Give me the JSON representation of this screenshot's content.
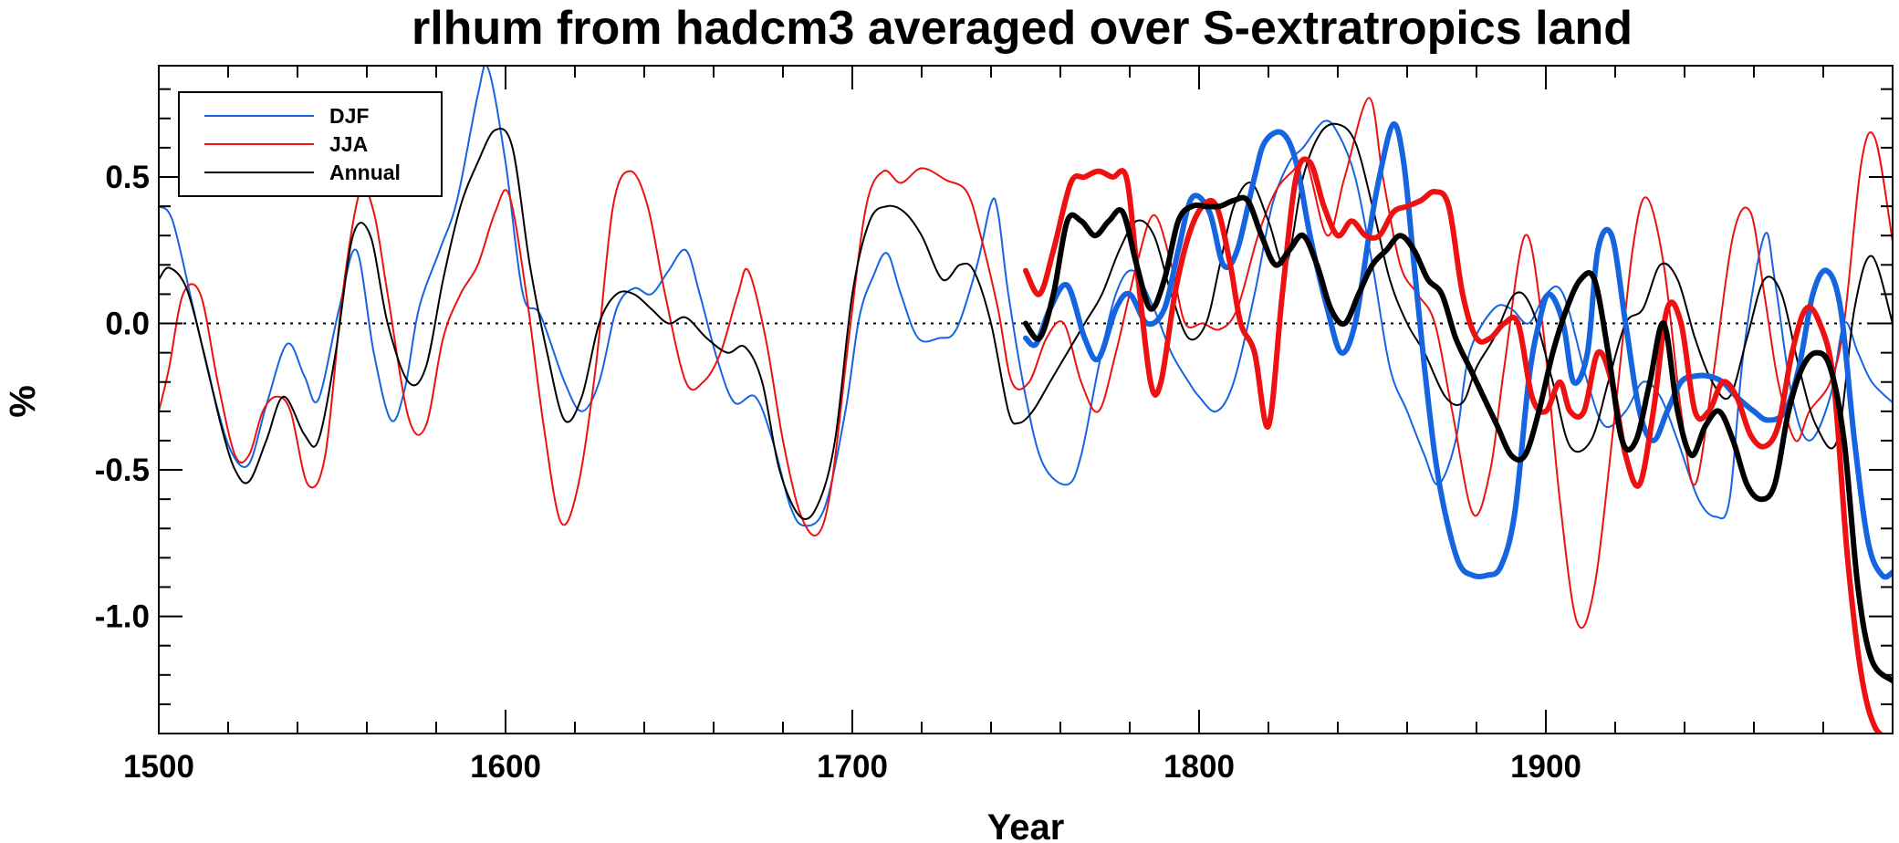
{
  "chart_data": {
    "type": "line",
    "title": "rlhum from hadcm3 averaged over S-extratropics land",
    "xlabel": "Year",
    "ylabel": "%",
    "xlim": [
      1500,
      2000
    ],
    "ylim": [
      -1.4,
      0.88
    ],
    "x_ticks": [
      1500,
      1600,
      1700,
      1800,
      1900
    ],
    "x_tick_labels": [
      "1500",
      "1600",
      "1700",
      "1800",
      "1900"
    ],
    "y_ticks": [
      -1.0,
      -0.5,
      0.0,
      0.5
    ],
    "y_tick_labels": [
      "-1.0",
      "-0.5",
      "0.0",
      "0.5"
    ],
    "x_minor_step": 20,
    "y_minor_step": 0.1,
    "zero_line": true,
    "legend_position": "top-left",
    "legend": [
      {
        "label": "DJF",
        "color": "#1565e0"
      },
      {
        "label": "JJA",
        "color": "#ee1111"
      },
      {
        "label": "Annual",
        "color": "#000000"
      }
    ],
    "series": [
      {
        "name": "DJF",
        "color": "#1565e0",
        "style": "thin",
        "role": "simulation",
        "x": [
          1500,
          1504,
          1510,
          1516,
          1521,
          1526,
          1531,
          1537,
          1542,
          1546,
          1552,
          1557,
          1562,
          1567,
          1571,
          1575,
          1581,
          1586,
          1592,
          1595,
          1600,
          1605,
          1610,
          1617,
          1622,
          1627,
          1632,
          1637,
          1642,
          1647,
          1652,
          1656,
          1661,
          1666,
          1672,
          1677,
          1682,
          1686,
          1692,
          1698,
          1702,
          1706,
          1710,
          1714,
          1719,
          1725,
          1730,
          1736,
          1740,
          1742,
          1745,
          1750,
          1755,
          1762,
          1766,
          1771,
          1776,
          1781,
          1787,
          1792,
          1797,
          1800,
          1805,
          1810,
          1816,
          1821,
          1826,
          1830,
          1836,
          1840,
          1845,
          1850,
          1855,
          1860,
          1865,
          1869,
          1874,
          1878,
          1885,
          1890,
          1895,
          1900,
          1905,
          1912,
          1917,
          1923,
          1928,
          1933,
          1938,
          1944,
          1949,
          1953,
          1957,
          1963,
          1966,
          1971,
          1976,
          1982,
          1986,
          1990,
          1994,
          2000
        ],
        "y": [
          0.4,
          0.35,
          0.05,
          -0.25,
          -0.44,
          -0.48,
          -0.28,
          -0.07,
          -0.18,
          -0.26,
          0.05,
          0.25,
          -0.1,
          -0.33,
          -0.22,
          0.05,
          0.25,
          0.42,
          0.78,
          0.87,
          0.55,
          0.1,
          0.03,
          -0.2,
          -0.3,
          -0.2,
          0.05,
          0.12,
          0.1,
          0.18,
          0.25,
          0.1,
          -0.12,
          -0.27,
          -0.25,
          -0.4,
          -0.62,
          -0.69,
          -0.63,
          -0.3,
          0.02,
          0.16,
          0.24,
          0.1,
          -0.05,
          -0.05,
          -0.02,
          0.2,
          0.41,
          0.38,
          0.1,
          -0.25,
          -0.48,
          -0.55,
          -0.45,
          -0.15,
          0.1,
          0.18,
          0.05,
          -0.1,
          -0.2,
          -0.25,
          -0.3,
          -0.2,
          0.1,
          0.4,
          0.55,
          0.6,
          0.69,
          0.65,
          0.5,
          0.2,
          -0.15,
          -0.3,
          -0.45,
          -0.55,
          -0.4,
          -0.1,
          0.05,
          0.05,
          0.0,
          0.1,
          0.1,
          -0.2,
          -0.35,
          -0.3,
          -0.2,
          -0.25,
          -0.4,
          -0.6,
          -0.66,
          -0.6,
          -0.1,
          0.3,
          0.15,
          -0.25,
          -0.4,
          -0.25,
          0.0,
          -0.1,
          -0.2,
          -0.27
        ]
      },
      {
        "name": "JJA",
        "color": "#ee1111",
        "style": "thin",
        "role": "simulation",
        "x": [
          1500,
          1503,
          1507,
          1512,
          1517,
          1522,
          1526,
          1530,
          1534,
          1538,
          1543,
          1548,
          1553,
          1558,
          1562,
          1566,
          1572,
          1577,
          1582,
          1587,
          1592,
          1597,
          1601,
          1606,
          1611,
          1616,
          1621,
          1626,
          1631,
          1636,
          1641,
          1646,
          1652,
          1657,
          1662,
          1667,
          1670,
          1675,
          1680,
          1685,
          1690,
          1694,
          1699,
          1704,
          1709,
          1714,
          1720,
          1727,
          1733,
          1737,
          1742,
          1746,
          1751,
          1756,
          1761,
          1766,
          1771,
          1776,
          1782,
          1787,
          1792,
          1796,
          1801,
          1806,
          1811,
          1817,
          1822,
          1827,
          1831,
          1837,
          1842,
          1849,
          1853,
          1858,
          1863,
          1868,
          1873,
          1879,
          1884,
          1888,
          1894,
          1899,
          1904,
          1909,
          1914,
          1920,
          1925,
          1929,
          1934,
          1939,
          1943,
          1948,
          1954,
          1959,
          1963,
          1967,
          1972,
          1976,
          1982,
          1986,
          1991,
          1995,
          2000
        ],
        "y": [
          -0.3,
          -0.15,
          0.1,
          0.1,
          -0.2,
          -0.45,
          -0.45,
          -0.3,
          -0.25,
          -0.3,
          -0.55,
          -0.45,
          0.1,
          0.45,
          0.38,
          0.1,
          -0.32,
          -0.35,
          -0.05,
          0.1,
          0.2,
          0.38,
          0.44,
          0.1,
          -0.35,
          -0.68,
          -0.55,
          -0.15,
          0.4,
          0.52,
          0.4,
          0.1,
          -0.2,
          -0.2,
          -0.1,
          0.1,
          0.18,
          -0.05,
          -0.4,
          -0.65,
          -0.72,
          -0.55,
          -0.05,
          0.4,
          0.52,
          0.48,
          0.53,
          0.49,
          0.45,
          0.3,
          0.05,
          -0.2,
          -0.2,
          -0.05,
          0.0,
          -0.2,
          -0.3,
          -0.1,
          0.2,
          0.37,
          0.2,
          0.0,
          0.0,
          -0.02,
          0.05,
          0.3,
          0.45,
          0.52,
          0.55,
          0.3,
          0.5,
          0.77,
          0.5,
          0.2,
          0.1,
          0.0,
          -0.3,
          -0.65,
          -0.5,
          -0.15,
          0.3,
          0.0,
          -0.6,
          -1.02,
          -0.9,
          -0.3,
          0.25,
          0.43,
          0.2,
          -0.3,
          -0.55,
          -0.2,
          0.3,
          0.38,
          0.1,
          -0.2,
          -0.4,
          -0.3,
          -0.2,
          0.0,
          0.55,
          0.63,
          0.28
        ]
      },
      {
        "name": "Annual",
        "color": "#000000",
        "style": "thin",
        "role": "simulation",
        "x": [
          1500,
          1503,
          1508,
          1513,
          1518,
          1522,
          1526,
          1531,
          1536,
          1542,
          1546,
          1551,
          1556,
          1561,
          1566,
          1572,
          1577,
          1582,
          1587,
          1592,
          1597,
          1602,
          1607,
          1612,
          1617,
          1622,
          1627,
          1632,
          1637,
          1642,
          1647,
          1652,
          1658,
          1664,
          1669,
          1674,
          1679,
          1685,
          1690,
          1695,
          1700,
          1705,
          1710,
          1715,
          1720,
          1726,
          1731,
          1735,
          1740,
          1745,
          1748,
          1752,
          1757,
          1762,
          1767,
          1772,
          1777,
          1782,
          1787,
          1792,
          1797,
          1802,
          1806,
          1810,
          1815,
          1820,
          1825,
          1830,
          1835,
          1840,
          1845,
          1850,
          1855,
          1860,
          1865,
          1871,
          1876,
          1880,
          1885,
          1891,
          1896,
          1902,
          1907,
          1913,
          1918,
          1923,
          1928,
          1933,
          1938,
          1943,
          1948,
          1953,
          1958,
          1963,
          1968,
          1973,
          1978,
          1984,
          1989,
          1994,
          2000
        ],
        "y": [
          0.15,
          0.19,
          0.12,
          -0.1,
          -0.35,
          -0.5,
          -0.54,
          -0.4,
          -0.25,
          -0.38,
          -0.4,
          -0.1,
          0.3,
          0.3,
          0.0,
          -0.2,
          -0.15,
          0.15,
          0.4,
          0.55,
          0.66,
          0.6,
          0.2,
          -0.1,
          -0.33,
          -0.25,
          0.0,
          0.1,
          0.1,
          0.05,
          0.0,
          0.02,
          -0.05,
          -0.1,
          -0.08,
          -0.2,
          -0.5,
          -0.66,
          -0.62,
          -0.4,
          0.1,
          0.35,
          0.4,
          0.38,
          0.3,
          0.15,
          0.2,
          0.18,
          0.0,
          -0.3,
          -0.34,
          -0.3,
          -0.2,
          -0.1,
          0.0,
          0.1,
          0.25,
          0.35,
          0.3,
          0.1,
          -0.05,
          0.0,
          0.2,
          0.4,
          0.48,
          0.35,
          0.2,
          0.5,
          0.65,
          0.68,
          0.62,
          0.4,
          0.15,
          0.0,
          -0.1,
          -0.25,
          -0.27,
          -0.15,
          -0.05,
          0.1,
          0.05,
          -0.2,
          -0.42,
          -0.4,
          -0.2,
          0.0,
          0.05,
          0.2,
          0.15,
          -0.05,
          -0.2,
          -0.25,
          -0.05,
          0.15,
          0.1,
          -0.15,
          -0.35,
          -0.4,
          0.05,
          0.23,
          0.0
        ]
      },
      {
        "name": "DJF",
        "color": "#1565e0",
        "style": "thick",
        "role": "observed",
        "x": [
          1750,
          1753,
          1757,
          1762,
          1767,
          1771,
          1776,
          1780,
          1785,
          1790,
          1794,
          1798,
          1803,
          1807,
          1811,
          1816,
          1819,
          1824,
          1828,
          1832,
          1837,
          1841,
          1845,
          1849,
          1852,
          1856,
          1859,
          1862,
          1865,
          1868,
          1871,
          1875,
          1879,
          1883,
          1887,
          1891,
          1895,
          1898,
          1901,
          1905,
          1908,
          1912,
          1915,
          1919,
          1923,
          1927,
          1931,
          1935,
          1939,
          1943,
          1947,
          1951,
          1955,
          1960,
          1964,
          1969,
          1973,
          1977,
          1981,
          1985,
          1989,
          1993,
          1997,
          2000
        ],
        "y": [
          -0.05,
          -0.07,
          0.05,
          0.13,
          -0.05,
          -0.12,
          0.05,
          0.1,
          0.0,
          0.05,
          0.25,
          0.43,
          0.38,
          0.2,
          0.25,
          0.5,
          0.62,
          0.65,
          0.55,
          0.3,
          0.05,
          -0.1,
          0.0,
          0.3,
          0.5,
          0.68,
          0.55,
          0.2,
          -0.15,
          -0.45,
          -0.65,
          -0.82,
          -0.86,
          -0.86,
          -0.83,
          -0.65,
          -0.2,
          0.0,
          0.1,
          0.0,
          -0.2,
          -0.1,
          0.25,
          0.3,
          0.0,
          -0.3,
          -0.4,
          -0.3,
          -0.2,
          -0.18,
          -0.18,
          -0.2,
          -0.25,
          -0.3,
          -0.33,
          -0.3,
          -0.15,
          0.1,
          0.18,
          0.05,
          -0.4,
          -0.75,
          -0.86,
          -0.85
        ]
      },
      {
        "name": "JJA",
        "color": "#ee1111",
        "style": "thick",
        "role": "observed",
        "x": [
          1750,
          1754,
          1758,
          1763,
          1767,
          1771,
          1775,
          1779,
          1782,
          1786,
          1789,
          1793,
          1797,
          1801,
          1805,
          1809,
          1812,
          1816,
          1820,
          1824,
          1828,
          1832,
          1836,
          1840,
          1844,
          1848,
          1852,
          1856,
          1860,
          1864,
          1868,
          1872,
          1876,
          1880,
          1884,
          1888,
          1892,
          1896,
          1900,
          1904,
          1907,
          1911,
          1915,
          1919,
          1923,
          1927,
          1931,
          1935,
          1939,
          1943,
          1947,
          1951,
          1955,
          1959,
          1963,
          1967,
          1971,
          1975,
          1979,
          1983,
          1987,
          1991,
          1995,
          2000
        ],
        "y": [
          0.18,
          0.1,
          0.25,
          0.48,
          0.5,
          0.52,
          0.5,
          0.5,
          0.2,
          -0.2,
          -0.2,
          0.1,
          0.3,
          0.4,
          0.4,
          0.2,
          0.0,
          -0.1,
          -0.35,
          0.1,
          0.5,
          0.55,
          0.4,
          0.3,
          0.35,
          0.3,
          0.3,
          0.38,
          0.4,
          0.42,
          0.45,
          0.4,
          0.1,
          -0.05,
          -0.05,
          0.0,
          0.0,
          -0.25,
          -0.3,
          -0.2,
          -0.3,
          -0.3,
          -0.1,
          -0.2,
          -0.45,
          -0.55,
          -0.3,
          0.05,
          0.0,
          -0.3,
          -0.3,
          -0.2,
          -0.25,
          -0.38,
          -0.42,
          -0.35,
          -0.1,
          0.05,
          0.0,
          -0.2,
          -0.8,
          -1.2,
          -1.38,
          -1.42
        ]
      },
      {
        "name": "Annual",
        "color": "#000000",
        "style": "thick",
        "role": "observed",
        "x": [
          1750,
          1754,
          1758,
          1762,
          1766,
          1770,
          1774,
          1778,
          1782,
          1786,
          1790,
          1794,
          1798,
          1802,
          1806,
          1810,
          1814,
          1818,
          1822,
          1826,
          1830,
          1834,
          1838,
          1842,
          1846,
          1850,
          1854,
          1858,
          1862,
          1866,
          1870,
          1874,
          1878,
          1882,
          1886,
          1890,
          1894,
          1898,
          1902,
          1906,
          1910,
          1914,
          1918,
          1922,
          1926,
          1930,
          1934,
          1938,
          1942,
          1946,
          1950,
          1954,
          1958,
          1962,
          1966,
          1970,
          1974,
          1978,
          1982,
          1986,
          1990,
          1994,
          2000
        ],
        "y": [
          0.0,
          -0.05,
          0.1,
          0.35,
          0.35,
          0.3,
          0.35,
          0.38,
          0.2,
          0.05,
          0.15,
          0.35,
          0.4,
          0.4,
          0.4,
          0.42,
          0.42,
          0.3,
          0.2,
          0.25,
          0.3,
          0.2,
          0.05,
          0.0,
          0.1,
          0.2,
          0.25,
          0.3,
          0.25,
          0.15,
          0.1,
          -0.05,
          -0.15,
          -0.25,
          -0.35,
          -0.45,
          -0.45,
          -0.3,
          -0.1,
          0.05,
          0.15,
          0.15,
          -0.1,
          -0.4,
          -0.4,
          -0.2,
          0.0,
          -0.3,
          -0.45,
          -0.35,
          -0.3,
          -0.4,
          -0.55,
          -0.6,
          -0.55,
          -0.3,
          -0.15,
          -0.1,
          -0.15,
          -0.4,
          -0.9,
          -1.15,
          -1.22
        ]
      }
    ]
  }
}
